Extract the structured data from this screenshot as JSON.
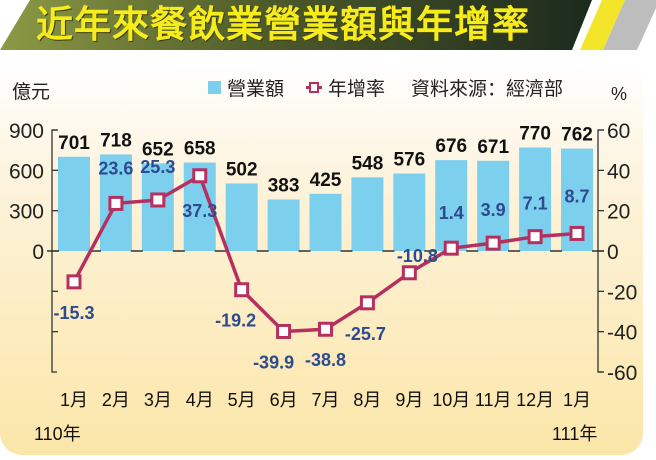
{
  "title": "近年來餐飲業營業額與年增率",
  "units": {
    "left": "億元",
    "right": "%"
  },
  "legend": {
    "bar": "營業額",
    "line": "年增率",
    "source": "資料來源：經濟部"
  },
  "colors": {
    "bar": "#7dcfee",
    "line": "#b5305f",
    "bar_label": "#111111",
    "line_label": "#2d4b8e",
    "banner_dark": "#1f2a1e",
    "banner_olive": "#7a8a3a",
    "title_text": "#f5ec1a"
  },
  "year_labels": {
    "start": "110年",
    "end": "111年"
  },
  "chart_data": {
    "type": "bar+line",
    "title": "近年來餐飲業營業額與年增率",
    "categories": [
      "1月",
      "2月",
      "3月",
      "4月",
      "5月",
      "6月",
      "7月",
      "8月",
      "9月",
      "10月",
      "11月",
      "12月",
      "1月"
    ],
    "category_groups": [
      {
        "label": "110年",
        "from": 0,
        "to": 11
      },
      {
        "label": "111年",
        "from": 12,
        "to": 12
      }
    ],
    "series": [
      {
        "name": "營業額",
        "type": "bar",
        "axis": "left",
        "unit": "億元",
        "values": [
          701,
          718,
          652,
          658,
          502,
          383,
          425,
          548,
          576,
          676,
          671,
          770,
          762
        ]
      },
      {
        "name": "年增率",
        "type": "line",
        "axis": "right",
        "unit": "%",
        "values": [
          -15.3,
          23.6,
          25.3,
          37.3,
          -19.2,
          -39.9,
          -38.8,
          -25.7,
          -10.8,
          1.4,
          3.9,
          7.1,
          8.7
        ]
      }
    ],
    "ylabel_left": "億元",
    "ylim_left": [
      -900,
      900
    ],
    "yticks_left": [
      900,
      600,
      300,
      0
    ],
    "ylabel_right": "%",
    "ylim_right": [
      -60,
      60
    ],
    "yticks_right": [
      60,
      40,
      20,
      0,
      -20,
      -40,
      -60
    ],
    "source": "資料來源：經濟部",
    "legend_position": "top"
  }
}
